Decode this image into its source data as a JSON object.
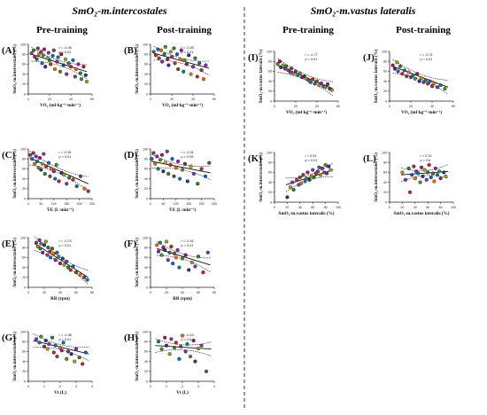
{
  "section_titles": {
    "left": "SmO₂-m.intercostales",
    "right": "SmO₂-m.vastus lateralis"
  },
  "column_titles": [
    "Pre-training",
    "Post-training",
    "Pre-training",
    "Post-training"
  ],
  "chart_data": [
    {
      "id": "A",
      "type": "scatter",
      "label": "(A)",
      "stat": "r = -0.46",
      "pval": "p < 0.01",
      "xlabel": "VO₂ (ml·kg⁻¹·min⁻¹)",
      "ylabel": "SmO₂-m.intercostales (%)",
      "xticks": [
        0,
        20,
        40,
        60
      ],
      "yticks": [
        0,
        20,
        40,
        60,
        80,
        100
      ],
      "xlim": [
        0,
        60
      ],
      "ylim": [
        0,
        100
      ],
      "fit": [
        [
          3,
          80
        ],
        [
          55,
          45
        ]
      ],
      "x": [
        3,
        5,
        6,
        8,
        9,
        10,
        12,
        13,
        14,
        15,
        16,
        18,
        19,
        20,
        21,
        23,
        24,
        25,
        27,
        28,
        30,
        31,
        33,
        35,
        36,
        38,
        40,
        42,
        44,
        45,
        47,
        49,
        50,
        52,
        54,
        55
      ],
      "y": [
        82,
        88,
        75,
        70,
        92,
        80,
        85,
        62,
        78,
        90,
        55,
        72,
        83,
        68,
        60,
        77,
        88,
        50,
        65,
        74,
        45,
        80,
        58,
        70,
        40,
        62,
        55,
        68,
        35,
        50,
        60,
        42,
        30,
        55,
        38,
        25
      ]
    },
    {
      "id": "B",
      "type": "scatter",
      "label": "(B)",
      "stat": "r = -0.45",
      "pval": "p < 0.01",
      "xlabel": "VO₂ (ml·kg⁻¹·min⁻¹)",
      "ylabel": "SmO₂-m.intercostales (%)",
      "xticks": [
        0,
        20,
        40,
        60
      ],
      "yticks": [
        0,
        20,
        40,
        60,
        80,
        100
      ],
      "xlim": [
        0,
        60
      ],
      "ylim": [
        0,
        100
      ],
      "fit": [
        [
          3,
          82
        ],
        [
          55,
          52
        ]
      ],
      "x": [
        3,
        5,
        7,
        8,
        10,
        11,
        13,
        14,
        16,
        17,
        19,
        20,
        22,
        23,
        25,
        26,
        28,
        29,
        31,
        32,
        34,
        36,
        38,
        40,
        42,
        44,
        46,
        48,
        50,
        52
      ],
      "y": [
        85,
        78,
        90,
        72,
        88,
        65,
        80,
        95,
        70,
        58,
        85,
        75,
        92,
        62,
        80,
        50,
        70,
        88,
        45,
        68,
        60,
        78,
        40,
        55,
        72,
        35,
        62,
        48,
        30,
        58
      ]
    },
    {
      "id": "C",
      "type": "scatter",
      "label": "(C)",
      "stat": "r = -0.61",
      "pval": "p < 0.01",
      "xlabel": "V̇E (L·min⁻¹)",
      "ylabel": "SmO₂-m.intercostales (%)",
      "xticks": [
        0,
        50,
        100,
        150,
        200,
        250
      ],
      "yticks": [
        0,
        20,
        40,
        60,
        80,
        100
      ],
      "xlim": [
        0,
        250
      ],
      "ylim": [
        0,
        100
      ],
      "fit": [
        [
          5,
          82
        ],
        [
          235,
          30
        ]
      ],
      "x": [
        8,
        15,
        20,
        25,
        30,
        35,
        40,
        45,
        50,
        55,
        60,
        65,
        70,
        80,
        85,
        90,
        100,
        105,
        110,
        120,
        130,
        140,
        150,
        160,
        175,
        190,
        205,
        220,
        235
      ],
      "y": [
        88,
        80,
        92,
        70,
        85,
        75,
        62,
        82,
        58,
        70,
        90,
        50,
        65,
        72,
        45,
        60,
        55,
        40,
        68,
        35,
        52,
        48,
        30,
        42,
        38,
        25,
        45,
        20,
        15
      ]
    },
    {
      "id": "D",
      "type": "scatter",
      "label": "(D)",
      "stat": "r = -0.31",
      "pval": "p < 0.05",
      "xlabel": "V̇E (L·min⁻¹)",
      "ylabel": "SmO₂-m.intercostales (%)",
      "xticks": [
        0,
        50,
        100,
        150,
        200,
        250
      ],
      "yticks": [
        0,
        20,
        40,
        60,
        80,
        100
      ],
      "xlim": [
        0,
        250
      ],
      "ylim": [
        0,
        100
      ],
      "fit": [
        [
          5,
          75
        ],
        [
          235,
          52
        ]
      ],
      "x": [
        5,
        12,
        18,
        25,
        30,
        38,
        45,
        50,
        58,
        65,
        70,
        78,
        85,
        92,
        100,
        108,
        115,
        125,
        135,
        145,
        158,
        170,
        185,
        200,
        215,
        230
      ],
      "y": [
        80,
        92,
        70,
        85,
        60,
        78,
        88,
        55,
        72,
        95,
        50,
        68,
        80,
        45,
        62,
        75,
        40,
        58,
        70,
        35,
        65,
        50,
        30,
        60,
        45,
        72
      ]
    },
    {
      "id": "E",
      "type": "scatter",
      "label": "(E)",
      "stat": "r = -0.70",
      "pval": "p < 0.01",
      "xlabel": "RR (rpm)",
      "ylabel": "SmO₂-m.intercostales (%)",
      "xticks": [
        0,
        20,
        40,
        60,
        80
      ],
      "yticks": [
        0,
        20,
        40,
        60,
        80,
        100
      ],
      "xlim": [
        0,
        80
      ],
      "ylim": [
        0,
        100
      ],
      "fit": [
        [
          8,
          88
        ],
        [
          75,
          20
        ]
      ],
      "x": [
        10,
        12,
        14,
        15,
        16,
        18,
        20,
        22,
        24,
        25,
        27,
        28,
        30,
        32,
        34,
        36,
        38,
        40,
        43,
        45,
        48,
        50,
        53,
        56,
        60,
        65,
        70,
        74
      ],
      "y": [
        90,
        82,
        95,
        78,
        88,
        70,
        85,
        92,
        65,
        80,
        72,
        60,
        78,
        68,
        55,
        70,
        62,
        48,
        58,
        45,
        52,
        40,
        35,
        42,
        30,
        25,
        20,
        15
      ]
    },
    {
      "id": "F",
      "type": "scatter",
      "label": "(F)",
      "stat": "r = -0.42",
      "pval": "p < 0.01",
      "xlabel": "RR (rpm)",
      "ylabel": "SmO₂-m.intercostales (%)",
      "xticks": [
        0,
        20,
        40,
        60,
        80
      ],
      "yticks": [
        0,
        20,
        40,
        60,
        80,
        100
      ],
      "xlim": [
        0,
        80
      ],
      "ylim": [
        0,
        100
      ],
      "fit": [
        [
          8,
          78
        ],
        [
          75,
          45
        ]
      ],
      "x": [
        8,
        10,
        12,
        14,
        16,
        18,
        20,
        22,
        24,
        26,
        28,
        30,
        32,
        34,
        36,
        40,
        44,
        48,
        52,
        56,
        60,
        66,
        72
      ],
      "y": [
        85,
        72,
        90,
        65,
        80,
        75,
        92,
        55,
        70,
        82,
        48,
        68,
        60,
        75,
        40,
        58,
        65,
        35,
        50,
        42,
        62,
        30,
        70
      ]
    },
    {
      "id": "G",
      "type": "scatter",
      "label": "(G)",
      "stat": "r = -0.38",
      "pval": "p < 0.01",
      "xlabel": "Vt (L)",
      "ylabel": "SmO₂-m.intercostales (%)",
      "xticks": [
        0,
        1,
        2,
        3,
        4
      ],
      "yticks": [
        0,
        20,
        40,
        60,
        80,
        100
      ],
      "xlim": [
        0,
        4
      ],
      "ylim": [
        0,
        100
      ],
      "fit": [
        [
          0.3,
          82
        ],
        [
          3.8,
          55
        ]
      ],
      "x": [
        0.5,
        0.7,
        0.8,
        1.0,
        1.1,
        1.2,
        1.3,
        1.5,
        1.6,
        1.7,
        1.8,
        2.0,
        2.1,
        2.2,
        2.4,
        2.5,
        2.7,
        2.9,
        3.0,
        3.2,
        3.4,
        3.6
      ],
      "y": [
        85,
        78,
        90,
        70,
        82,
        65,
        75,
        88,
        58,
        72,
        50,
        68,
        62,
        78,
        45,
        60,
        55,
        40,
        65,
        48,
        35,
        58
      ]
    },
    {
      "id": "H",
      "type": "scatter",
      "label": "(H)",
      "stat": "r = -0.10",
      "pval": "p < 0.5",
      "xlabel": "Vt (L)",
      "ylabel": "SmO₂-m.intercostales (%)",
      "xticks": [
        0,
        1,
        2,
        3,
        4
      ],
      "yticks": [
        0,
        20,
        40,
        60,
        80,
        100
      ],
      "xlim": [
        0,
        4
      ],
      "ylim": [
        0,
        100
      ],
      "fit": [
        [
          0.3,
          72
        ],
        [
          3.8,
          65
        ]
      ],
      "x": [
        0.5,
        0.7,
        0.9,
        1.0,
        1.2,
        1.3,
        1.5,
        1.6,
        1.8,
        1.9,
        2.0,
        2.2,
        2.3,
        2.5,
        2.7,
        2.8,
        3.0,
        3.2,
        3.5
      ],
      "y": [
        80,
        65,
        88,
        72,
        55,
        85,
        68,
        78,
        45,
        70,
        92,
        60,
        75,
        50,
        82,
        40,
        66,
        72,
        20
      ]
    },
    {
      "id": "I",
      "type": "scatter",
      "label": "(I)",
      "stat": "r = -0.77",
      "pval": "p < 0.01",
      "xlabel": "VO₂ (ml·kg⁻¹·min⁻¹)",
      "ylabel": "SmO₂-m.vastus lateralis (%)",
      "xticks": [
        0,
        20,
        40,
        60
      ],
      "yticks": [
        0,
        20,
        40,
        60,
        80,
        100
      ],
      "xlim": [
        0,
        60
      ],
      "ylim": [
        0,
        100
      ],
      "fit": [
        [
          3,
          72
        ],
        [
          55,
          25
        ]
      ],
      "x": [
        3,
        5,
        6,
        8,
        10,
        11,
        13,
        15,
        16,
        18,
        20,
        22,
        24,
        26,
        28,
        30,
        32,
        34,
        36,
        38,
        40,
        42,
        44,
        46,
        48,
        50,
        52,
        54
      ],
      "y": [
        75,
        80,
        68,
        72,
        65,
        70,
        62,
        58,
        66,
        55,
        60,
        52,
        56,
        48,
        50,
        45,
        42,
        38,
        44,
        35,
        40,
        32,
        36,
        30,
        28,
        34,
        25,
        22
      ]
    },
    {
      "id": "J",
      "type": "scatter",
      "label": "(J)",
      "stat": "r = -0.71",
      "pval": "p < 0.01",
      "xlabel": "VO₂ (ml·kg⁻¹·min⁻¹)",
      "ylabel": "SmO₂-m.vastus lateralis (%)",
      "xticks": [
        0,
        20,
        40,
        60
      ],
      "yticks": [
        0,
        20,
        40,
        60,
        80,
        100
      ],
      "xlim": [
        0,
        60
      ],
      "ylim": [
        0,
        100
      ],
      "fit": [
        [
          3,
          70
        ],
        [
          55,
          28
        ]
      ],
      "x": [
        3,
        5,
        7,
        8,
        10,
        12,
        14,
        16,
        18,
        20,
        22,
        24,
        26,
        28,
        30,
        32,
        34,
        36,
        38,
        40,
        42,
        45,
        48,
        52
      ],
      "y": [
        72,
        65,
        78,
        60,
        70,
        55,
        62,
        50,
        58,
        48,
        52,
        45,
        55,
        40,
        46,
        38,
        42,
        35,
        40,
        30,
        36,
        28,
        32,
        25
      ]
    },
    {
      "id": "K",
      "type": "scatter",
      "label": "(K)",
      "stat": "r = 0.51",
      "pval": "p < 0.01",
      "xlabel": "SmO₂-m.vastus lateralis (%)",
      "ylabel": "SmO₂-m.intercostales (%)",
      "xticks": [
        0,
        20,
        40,
        60,
        80,
        100
      ],
      "yticks": [
        0,
        20,
        40,
        60,
        80,
        100
      ],
      "xlim": [
        0,
        100
      ],
      "ylim": [
        0,
        100
      ],
      "fit": [
        [
          18,
          35
        ],
        [
          92,
          65
        ]
      ],
      "x": [
        20,
        25,
        28,
        30,
        35,
        38,
        40,
        42,
        45,
        48,
        50,
        52,
        55,
        58,
        60,
        62,
        65,
        68,
        70,
        72,
        75,
        78,
        80,
        82,
        85,
        88
      ],
      "y": [
        10,
        30,
        40,
        25,
        45,
        35,
        50,
        38,
        55,
        42,
        48,
        60,
        45,
        52,
        65,
        50,
        58,
        62,
        70,
        55,
        68,
        60,
        75,
        58,
        72,
        65
      ]
    },
    {
      "id": "L",
      "type": "scatter",
      "label": "(L)",
      "stat": "r = 0.10",
      "pval": "p < 0.6",
      "xlabel": "SmO₂-m.vastus lateralis (%)",
      "ylabel": "SmO₂-m.intercostales (%)",
      "xticks": [
        0,
        20,
        40,
        60,
        80,
        100
      ],
      "yticks": [
        0,
        20,
        40,
        60,
        80,
        100
      ],
      "xlim": [
        0,
        100
      ],
      "ylim": [
        0,
        100
      ],
      "fit": [
        [
          18,
          55
        ],
        [
          92,
          62
        ]
      ],
      "x": [
        20,
        25,
        30,
        32,
        35,
        38,
        40,
        42,
        45,
        48,
        50,
        52,
        55,
        58,
        60,
        62,
        65,
        68,
        70,
        72,
        75,
        78,
        80,
        85,
        88
      ],
      "y": [
        60,
        45,
        68,
        20,
        55,
        72,
        48,
        62,
        58,
        40,
        70,
        52,
        65,
        45,
        60,
        75,
        50,
        58,
        42,
        68,
        55,
        62,
        48,
        60,
        52
      ]
    }
  ]
}
